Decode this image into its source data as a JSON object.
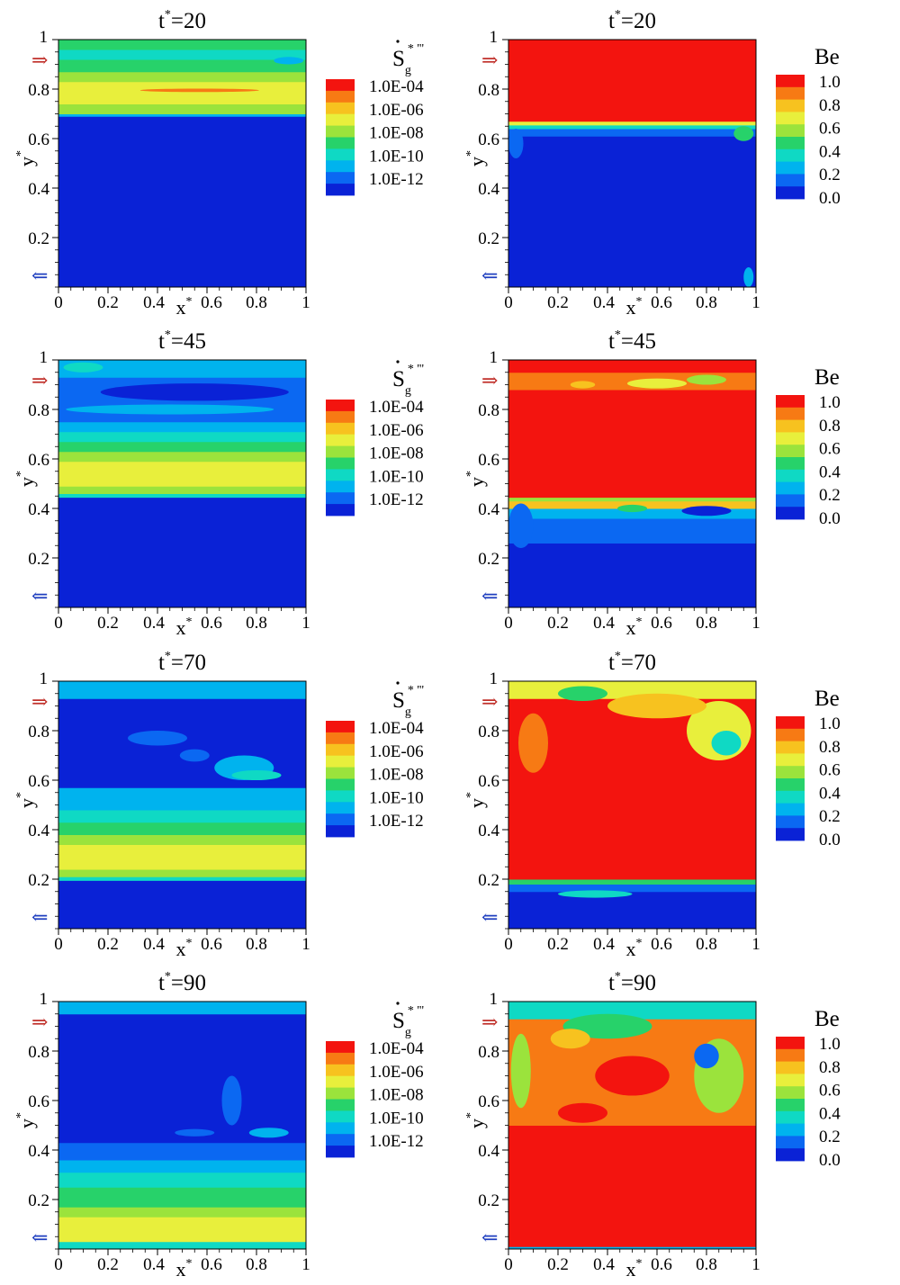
{
  "chart_data": {
    "type": "heatmap",
    "x_axis": {
      "label": "x",
      "label_superscript": "*",
      "range": [
        0,
        1
      ],
      "ticks": [
        "0",
        "0.2",
        "0.4",
        "0.6",
        "0.8",
        "1"
      ]
    },
    "y_axis": {
      "label": "y",
      "label_superscript": "*",
      "range": [
        0,
        1
      ],
      "ticks": [
        "0.2",
        "0.4",
        "0.6",
        "0.8",
        "1"
      ]
    },
    "arrows": {
      "inlet": {
        "y": 0.92,
        "color": "#c0302a",
        "symbol": "⇒"
      },
      "outlet": {
        "y": 0.05,
        "color": "#1f3fbf",
        "symbol": "⇐"
      }
    },
    "colormap": [
      "#0a22d6",
      "#0b68f2",
      "#00b3ee",
      "#0fd9c4",
      "#27d26a",
      "#9be33c",
      "#e8ef3c",
      "#f7c21f",
      "#f77a14",
      "#f3140f"
    ],
    "legends": {
      "sg": {
        "symbol_main": "S",
        "symbol_sub": "g",
        "symbol_sup": "* '''",
        "labels": [
          "1.0E-04",
          "1.0E-06",
          "1.0E-08",
          "1.0E-10",
          "1.0E-12"
        ],
        "log_range": [
          -12,
          -4
        ]
      },
      "be": {
        "title": "Be",
        "labels": [
          "1.0",
          "0.8",
          "0.6",
          "0.4",
          "0.2",
          "0.0"
        ],
        "range": [
          0,
          1
        ]
      }
    },
    "panels": [
      {
        "row": 0,
        "col": 0,
        "title": "t",
        "title_sup": "*",
        "title_value": "=20",
        "variable": "Sg",
        "bands": [
          {
            "y": [
              0.0,
              0.69
            ],
            "level": 0
          },
          {
            "y": [
              0.69,
              0.7
            ],
            "level": 2
          },
          {
            "y": [
              0.7,
              0.74
            ],
            "level": 5
          },
          {
            "y": [
              0.74,
              0.83
            ],
            "level": 6
          },
          {
            "y": [
              0.83,
              0.87
            ],
            "level": 5
          },
          {
            "y": [
              0.87,
              0.92
            ],
            "level": 4
          },
          {
            "y": [
              0.92,
              0.96
            ],
            "level": 3
          },
          {
            "y": [
              0.96,
              1.0
            ],
            "level": 4
          }
        ],
        "blobs": [
          {
            "cx": 0.57,
            "cy": 0.795,
            "rx": 0.24,
            "ry": 0.007,
            "level": 8
          },
          {
            "cx": 0.93,
            "cy": 0.915,
            "rx": 0.06,
            "ry": 0.015,
            "level": 2
          }
        ]
      },
      {
        "row": 0,
        "col": 1,
        "title": "t",
        "title_sup": "*",
        "title_value": "=20",
        "variable": "Be",
        "bands": [
          {
            "y": [
              0.0,
              0.61
            ],
            "level": 0
          },
          {
            "y": [
              0.61,
              0.64
            ],
            "level": 1
          },
          {
            "y": [
              0.64,
              0.655
            ],
            "level": 3
          },
          {
            "y": [
              0.655,
              0.67
            ],
            "level": 6
          },
          {
            "y": [
              0.67,
              1.0
            ],
            "level": 9
          }
        ],
        "blobs": [
          {
            "cx": 0.03,
            "cy": 0.58,
            "rx": 0.03,
            "ry": 0.06,
            "level": 1
          },
          {
            "cx": 0.95,
            "cy": 0.62,
            "rx": 0.04,
            "ry": 0.03,
            "level": 4
          },
          {
            "cx": 0.97,
            "cy": 0.04,
            "rx": 0.02,
            "ry": 0.04,
            "level": 2
          }
        ]
      },
      {
        "row": 1,
        "col": 0,
        "title": "t",
        "title_sup": "*",
        "title_value": "=45",
        "variable": "Sg",
        "bands": [
          {
            "y": [
              0.0,
              0.445
            ],
            "level": 0
          },
          {
            "y": [
              0.445,
              0.46
            ],
            "level": 3
          },
          {
            "y": [
              0.46,
              0.49
            ],
            "level": 5
          },
          {
            "y": [
              0.49,
              0.59
            ],
            "level": 6
          },
          {
            "y": [
              0.59,
              0.63
            ],
            "level": 5
          },
          {
            "y": [
              0.63,
              0.67
            ],
            "level": 4
          },
          {
            "y": [
              0.67,
              0.71
            ],
            "level": 3
          },
          {
            "y": [
              0.71,
              0.75
            ],
            "level": 2
          },
          {
            "y": [
              0.75,
              0.93
            ],
            "level": 1
          },
          {
            "y": [
              0.93,
              1.0
            ],
            "level": 2
          }
        ],
        "blobs": [
          {
            "cx": 0.55,
            "cy": 0.87,
            "rx": 0.38,
            "ry": 0.035,
            "level": 0
          },
          {
            "cx": 0.45,
            "cy": 0.8,
            "rx": 0.42,
            "ry": 0.02,
            "level": 2
          },
          {
            "cx": 0.1,
            "cy": 0.97,
            "rx": 0.08,
            "ry": 0.02,
            "level": 3
          }
        ]
      },
      {
        "row": 1,
        "col": 1,
        "title": "t",
        "title_sup": "*",
        "title_value": "=45",
        "variable": "Be",
        "bands": [
          {
            "y": [
              0.0,
              0.26
            ],
            "level": 0
          },
          {
            "y": [
              0.26,
              0.36
            ],
            "level": 1
          },
          {
            "y": [
              0.36,
              0.4
            ],
            "level": 2
          },
          {
            "y": [
              0.4,
              0.43
            ],
            "level": 7
          },
          {
            "y": [
              0.43,
              0.445
            ],
            "level": 5
          },
          {
            "y": [
              0.445,
              0.88
            ],
            "level": 9
          },
          {
            "y": [
              0.88,
              0.95
            ],
            "level": 8
          },
          {
            "y": [
              0.95,
              1.0
            ],
            "level": 9
          }
        ],
        "blobs": [
          {
            "cx": 0.8,
            "cy": 0.39,
            "rx": 0.1,
            "ry": 0.02,
            "level": 0
          },
          {
            "cx": 0.5,
            "cy": 0.4,
            "rx": 0.06,
            "ry": 0.015,
            "level": 4
          },
          {
            "cx": 0.05,
            "cy": 0.33,
            "rx": 0.05,
            "ry": 0.09,
            "level": 1
          },
          {
            "cx": 0.6,
            "cy": 0.905,
            "rx": 0.12,
            "ry": 0.02,
            "level": 6
          },
          {
            "cx": 0.8,
            "cy": 0.92,
            "rx": 0.08,
            "ry": 0.02,
            "level": 5
          },
          {
            "cx": 0.3,
            "cy": 0.9,
            "rx": 0.05,
            "ry": 0.015,
            "level": 7
          }
        ]
      },
      {
        "row": 2,
        "col": 0,
        "title": "t",
        "title_sup": "*",
        "title_value": "=70",
        "variable": "Sg",
        "bands": [
          {
            "y": [
              0.0,
              0.195
            ],
            "level": 0
          },
          {
            "y": [
              0.195,
              0.21
            ],
            "level": 3
          },
          {
            "y": [
              0.21,
              0.24
            ],
            "level": 5
          },
          {
            "y": [
              0.24,
              0.34
            ],
            "level": 6
          },
          {
            "y": [
              0.34,
              0.38
            ],
            "level": 5
          },
          {
            "y": [
              0.38,
              0.43
            ],
            "level": 4
          },
          {
            "y": [
              0.43,
              0.48
            ],
            "level": 3
          },
          {
            "y": [
              0.48,
              0.57
            ],
            "level": 2
          },
          {
            "y": [
              0.57,
              0.93
            ],
            "level": 0
          },
          {
            "y": [
              0.93,
              1.0
            ],
            "level": 2
          }
        ],
        "blobs": [
          {
            "cx": 0.75,
            "cy": 0.65,
            "rx": 0.12,
            "ry": 0.05,
            "level": 2
          },
          {
            "cx": 0.8,
            "cy": 0.62,
            "rx": 0.1,
            "ry": 0.02,
            "level": 3
          },
          {
            "cx": 0.4,
            "cy": 0.77,
            "rx": 0.12,
            "ry": 0.03,
            "level": 1
          },
          {
            "cx": 0.55,
            "cy": 0.7,
            "rx": 0.06,
            "ry": 0.025,
            "level": 1
          }
        ]
      },
      {
        "row": 2,
        "col": 1,
        "title": "t",
        "title_sup": "*",
        "title_value": "=70",
        "variable": "Be",
        "bands": [
          {
            "y": [
              0.0,
              0.15
            ],
            "level": 0
          },
          {
            "y": [
              0.15,
              0.18
            ],
            "level": 1
          },
          {
            "y": [
              0.18,
              0.2
            ],
            "level": 4
          },
          {
            "y": [
              0.2,
              0.93
            ],
            "level": 9
          },
          {
            "y": [
              0.93,
              1.0
            ],
            "level": 6
          }
        ],
        "blobs": [
          {
            "cx": 0.35,
            "cy": 0.14,
            "rx": 0.15,
            "ry": 0.015,
            "level": 3
          },
          {
            "cx": 0.85,
            "cy": 0.8,
            "rx": 0.13,
            "ry": 0.12,
            "level": 6
          },
          {
            "cx": 0.88,
            "cy": 0.75,
            "rx": 0.06,
            "ry": 0.05,
            "level": 3
          },
          {
            "cx": 0.6,
            "cy": 0.9,
            "rx": 0.2,
            "ry": 0.05,
            "level": 7
          },
          {
            "cx": 0.1,
            "cy": 0.75,
            "rx": 0.06,
            "ry": 0.12,
            "level": 8
          },
          {
            "cx": 0.3,
            "cy": 0.95,
            "rx": 0.1,
            "ry": 0.03,
            "level": 4
          }
        ]
      },
      {
        "row": 3,
        "col": 0,
        "title": "t",
        "title_sup": "*",
        "title_value": "=90",
        "variable": "Sg",
        "bands": [
          {
            "y": [
              0.0,
              0.03
            ],
            "level": 3
          },
          {
            "y": [
              0.03,
              0.13
            ],
            "level": 6
          },
          {
            "y": [
              0.13,
              0.17
            ],
            "level": 5
          },
          {
            "y": [
              0.17,
              0.25
            ],
            "level": 4
          },
          {
            "y": [
              0.25,
              0.31
            ],
            "level": 3
          },
          {
            "y": [
              0.31,
              0.36
            ],
            "level": 2
          },
          {
            "y": [
              0.36,
              0.43
            ],
            "level": 1
          },
          {
            "y": [
              0.43,
              0.95
            ],
            "level": 0
          },
          {
            "y": [
              0.95,
              1.0
            ],
            "level": 2
          }
        ],
        "blobs": [
          {
            "cx": 0.7,
            "cy": 0.6,
            "rx": 0.04,
            "ry": 0.1,
            "level": 1
          },
          {
            "cx": 0.85,
            "cy": 0.47,
            "rx": 0.08,
            "ry": 0.02,
            "level": 2
          },
          {
            "cx": 0.55,
            "cy": 0.47,
            "rx": 0.08,
            "ry": 0.015,
            "level": 1
          }
        ]
      },
      {
        "row": 3,
        "col": 1,
        "title": "t",
        "title_sup": "*",
        "title_value": "=90",
        "variable": "Be",
        "bands": [
          {
            "y": [
              0.0,
              0.01
            ],
            "level": 2
          },
          {
            "y": [
              0.01,
              0.5
            ],
            "level": 9
          },
          {
            "y": [
              0.5,
              0.93
            ],
            "level": 8
          },
          {
            "y": [
              0.93,
              1.0
            ],
            "level": 3
          }
        ],
        "blobs": [
          {
            "cx": 0.05,
            "cy": 0.72,
            "rx": 0.04,
            "ry": 0.15,
            "level": 5
          },
          {
            "cx": 0.85,
            "cy": 0.7,
            "rx": 0.1,
            "ry": 0.15,
            "level": 5
          },
          {
            "cx": 0.8,
            "cy": 0.78,
            "rx": 0.05,
            "ry": 0.05,
            "level": 1
          },
          {
            "cx": 0.4,
            "cy": 0.9,
            "rx": 0.18,
            "ry": 0.05,
            "level": 4
          },
          {
            "cx": 0.5,
            "cy": 0.7,
            "rx": 0.15,
            "ry": 0.08,
            "level": 9
          },
          {
            "cx": 0.3,
            "cy": 0.55,
            "rx": 0.1,
            "ry": 0.04,
            "level": 9
          },
          {
            "cx": 0.25,
            "cy": 0.85,
            "rx": 0.08,
            "ry": 0.04,
            "level": 7
          }
        ]
      }
    ]
  }
}
